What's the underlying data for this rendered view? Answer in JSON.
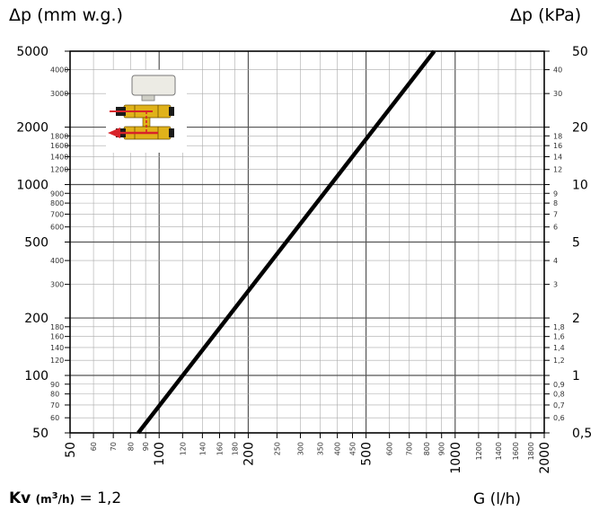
{
  "header": {
    "left_axis_title": "Δp (mm w.g.)",
    "right_axis_title": "Δp (kPa)"
  },
  "footer": {
    "kv_label": "Kv",
    "kv_unit_pre": "(m",
    "kv_unit_sup": "3",
    "kv_unit_post": "/h)",
    "kv_value": "= 1,2",
    "x_axis_title": "G (l/h)"
  },
  "chart_data": {
    "type": "line",
    "scale": "log-log",
    "xlabel": "G (l/h)",
    "ylabel": "Δp (mm w.g.)",
    "y2label": "Δp (kPa)",
    "xlim": [
      50,
      2000
    ],
    "ylim": [
      50,
      5000
    ],
    "y2lim": [
      0.5,
      50
    ],
    "grid": true,
    "line_color": "#000000",
    "series": [
      {
        "x": [
          85,
          850
        ],
        "y": [
          50,
          5000
        ]
      }
    ],
    "x_ticks": [
      {
        "v": 50,
        "t": "50",
        "major": true
      },
      {
        "v": 60,
        "t": "60",
        "major": false
      },
      {
        "v": 70,
        "t": "70",
        "major": false
      },
      {
        "v": 80,
        "t": "80",
        "major": false
      },
      {
        "v": 90,
        "t": "90",
        "major": false
      },
      {
        "v": 100,
        "t": "100",
        "major": true
      },
      {
        "v": 120,
        "t": "120",
        "major": false
      },
      {
        "v": 140,
        "t": "140",
        "major": false
      },
      {
        "v": 160,
        "t": "160",
        "major": false
      },
      {
        "v": 180,
        "t": "180",
        "major": false
      },
      {
        "v": 200,
        "t": "200",
        "major": true
      },
      {
        "v": 250,
        "t": "250",
        "major": false
      },
      {
        "v": 300,
        "t": "300",
        "major": false
      },
      {
        "v": 350,
        "t": "350",
        "major": false
      },
      {
        "v": 400,
        "t": "400",
        "major": false
      },
      {
        "v": 450,
        "t": "450",
        "major": false
      },
      {
        "v": 500,
        "t": "500",
        "major": true
      },
      {
        "v": 600,
        "t": "600",
        "major": false
      },
      {
        "v": 700,
        "t": "700",
        "major": false
      },
      {
        "v": 800,
        "t": "800",
        "major": false
      },
      {
        "v": 900,
        "t": "900",
        "major": false
      },
      {
        "v": 1000,
        "t": "1000",
        "major": true
      },
      {
        "v": 1200,
        "t": "1200",
        "major": false
      },
      {
        "v": 1400,
        "t": "1400",
        "major": false
      },
      {
        "v": 1600,
        "t": "1600",
        "major": false
      },
      {
        "v": 1800,
        "t": "1800",
        "major": false
      },
      {
        "v": 2000,
        "t": "2000",
        "major": true
      }
    ],
    "y_ticks": [
      {
        "v": 50,
        "t": "50",
        "major": true
      },
      {
        "v": 60,
        "t": "60",
        "major": false
      },
      {
        "v": 70,
        "t": "70",
        "major": false
      },
      {
        "v": 80,
        "t": "80",
        "major": false
      },
      {
        "v": 90,
        "t": "90",
        "major": false
      },
      {
        "v": 100,
        "t": "100",
        "major": true
      },
      {
        "v": 120,
        "t": "120",
        "major": false
      },
      {
        "v": 140,
        "t": "140",
        "major": false
      },
      {
        "v": 160,
        "t": "160",
        "major": false
      },
      {
        "v": 180,
        "t": "180",
        "major": false
      },
      {
        "v": 200,
        "t": "200",
        "major": true
      },
      {
        "v": 300,
        "t": "300",
        "major": false
      },
      {
        "v": 400,
        "t": "400",
        "major": false
      },
      {
        "v": 500,
        "t": "500",
        "major": true
      },
      {
        "v": 600,
        "t": "600",
        "major": false
      },
      {
        "v": 700,
        "t": "700",
        "major": false
      },
      {
        "v": 800,
        "t": "800",
        "major": false
      },
      {
        "v": 900,
        "t": "900",
        "major": false
      },
      {
        "v": 1000,
        "t": "1000",
        "major": true
      },
      {
        "v": 1200,
        "t": "1200",
        "major": false
      },
      {
        "v": 1400,
        "t": "1400",
        "major": false
      },
      {
        "v": 1600,
        "t": "1600",
        "major": false
      },
      {
        "v": 1800,
        "t": "1800",
        "major": false
      },
      {
        "v": 2000,
        "t": "2000",
        "major": true
      },
      {
        "v": 3000,
        "t": "3000",
        "major": false
      },
      {
        "v": 4000,
        "t": "4000",
        "major": false
      },
      {
        "v": 5000,
        "t": "5000",
        "major": true
      }
    ],
    "y2_ticks": [
      {
        "v": 0.5,
        "t": "0,5",
        "major": true
      },
      {
        "v": 0.6,
        "t": "0,6",
        "major": false
      },
      {
        "v": 0.7,
        "t": "0,7",
        "major": false
      },
      {
        "v": 0.8,
        "t": "0,8",
        "major": false
      },
      {
        "v": 0.9,
        "t": "0,9",
        "major": false
      },
      {
        "v": 1,
        "t": "1",
        "major": true
      },
      {
        "v": 1.2,
        "t": "1,2",
        "major": false
      },
      {
        "v": 1.4,
        "t": "1,4",
        "major": false
      },
      {
        "v": 1.6,
        "t": "1,6",
        "major": false
      },
      {
        "v": 1.8,
        "t": "1,8",
        "major": false
      },
      {
        "v": 2,
        "t": "2",
        "major": true
      },
      {
        "v": 3,
        "t": "3",
        "major": false
      },
      {
        "v": 4,
        "t": "4",
        "major": false
      },
      {
        "v": 5,
        "t": "5",
        "major": true
      },
      {
        "v": 6,
        "t": "6",
        "major": false
      },
      {
        "v": 7,
        "t": "7",
        "major": false
      },
      {
        "v": 8,
        "t": "8",
        "major": false
      },
      {
        "v": 9,
        "t": "9",
        "major": false
      },
      {
        "v": 10,
        "t": "10",
        "major": true
      },
      {
        "v": 12,
        "t": "12",
        "major": false
      },
      {
        "v": 14,
        "t": "14",
        "major": false
      },
      {
        "v": 16,
        "t": "16",
        "major": false
      },
      {
        "v": 18,
        "t": "18",
        "major": false
      },
      {
        "v": 20,
        "t": "20",
        "major": true
      },
      {
        "v": 30,
        "t": "30",
        "major": false
      },
      {
        "v": 40,
        "t": "40",
        "major": false
      },
      {
        "v": 50,
        "t": "50",
        "major": true
      }
    ]
  },
  "inset": {
    "icon": "valve-actuator-icon",
    "arrow_color": "#d8232a",
    "body_color": "#e0b21a"
  }
}
